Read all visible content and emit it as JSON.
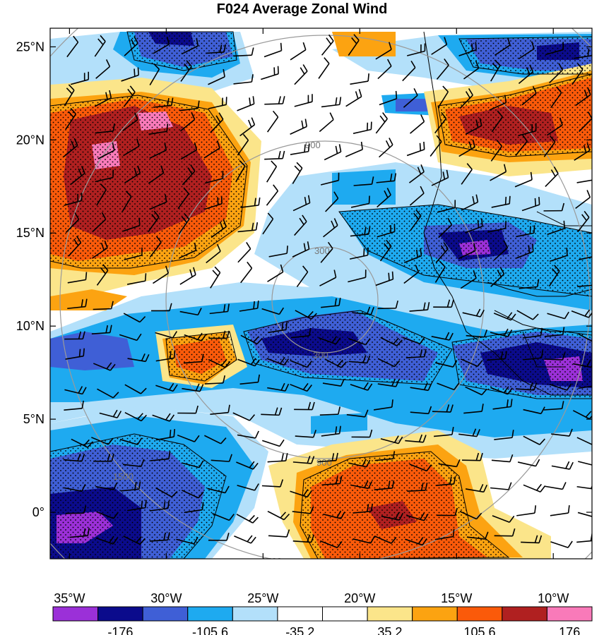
{
  "title": "F024 Average Zonal Wind",
  "chart_data": {
    "type": "contour-map",
    "title": "F024 Average Zonal Wind",
    "lon_range": [
      -36,
      -8
    ],
    "lat_range": [
      -2.5,
      26
    ],
    "lon_ticks": [
      {
        "value": -35,
        "label": "35°W"
      },
      {
        "value": -30,
        "label": "30°W"
      },
      {
        "value": -25,
        "label": "25°W"
      },
      {
        "value": -20,
        "label": "20°W"
      },
      {
        "value": -15,
        "label": "15°W"
      },
      {
        "value": -10,
        "label": "10°W"
      }
    ],
    "lat_ticks": [
      {
        "value": 25,
        "label": "25°N"
      },
      {
        "value": 20,
        "label": "20°N"
      },
      {
        "value": 15,
        "label": "15°N"
      },
      {
        "value": 10,
        "label": "10°N"
      },
      {
        "value": 5,
        "label": "5°N"
      },
      {
        "value": 0,
        "label": "0°"
      }
    ],
    "range_rings": {
      "center": [
        -21.5,
        11.8
      ],
      "rings": [
        {
          "label": "300",
          "radius_deg": 2.7
        },
        {
          "label": "900",
          "radius_deg": 8.1
        },
        {
          "label": "1500",
          "radius_deg": 13.5
        }
      ]
    },
    "colorbar": {
      "colors": [
        "#9b30d8",
        "#0b0b8c",
        "#3f5fd6",
        "#1eaaf0",
        "#b3e0fa",
        "#ffffff",
        "#ffffff",
        "#fbe58a",
        "#fca311",
        "#fa5a0a",
        "#b02020",
        "#f97ab9"
      ],
      "tick_labels": [
        {
          "position": 2,
          "label": "-176"
        },
        {
          "position": 4,
          "label": "-105.6"
        },
        {
          "position": 6,
          "label": "-35.2"
        },
        {
          "position": 8,
          "label": "35.2"
        },
        {
          "position": 10,
          "label": "105.6"
        },
        {
          "position": 12,
          "label": "176"
        }
      ]
    }
  }
}
